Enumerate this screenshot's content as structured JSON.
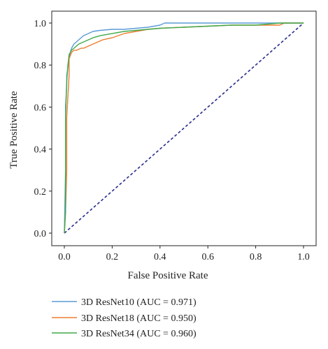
{
  "chart_data": {
    "type": "line",
    "title": "",
    "xlabel": "False Positive Rate",
    "ylabel": "True Positive Rate",
    "xlim": [
      0.0,
      1.0
    ],
    "ylim": [
      0.0,
      1.0
    ],
    "xticks": [
      "0.0",
      "0.2",
      "0.4",
      "0.6",
      "0.8",
      "1.0"
    ],
    "yticks": [
      "0.0",
      "0.2",
      "0.4",
      "0.6",
      "0.8",
      "1.0"
    ],
    "grid": false,
    "legend_position": "below",
    "series": [
      {
        "name": "3D ResNet10 (AUC = 0.971)",
        "color": "#5b9bd5",
        "x": [
          0.0,
          0.005,
          0.005,
          0.01,
          0.01,
          0.015,
          0.02,
          0.025,
          0.03,
          0.04,
          0.05,
          0.06,
          0.08,
          0.1,
          0.12,
          0.15,
          0.2,
          0.25,
          0.3,
          0.35,
          0.4,
          0.42,
          0.6,
          0.8,
          0.9,
          1.0
        ],
        "y": [
          0.0,
          0.3,
          0.6,
          0.7,
          0.75,
          0.79,
          0.83,
          0.86,
          0.88,
          0.9,
          0.91,
          0.92,
          0.94,
          0.95,
          0.96,
          0.965,
          0.97,
          0.97,
          0.975,
          0.98,
          0.99,
          1.0,
          1.0,
          1.0,
          1.0,
          1.0
        ]
      },
      {
        "name": "3D ResNet18 (AUC = 0.950)",
        "color": "#ed7d31",
        "x": [
          0.0,
          0.005,
          0.01,
          0.01,
          0.02,
          0.02,
          0.03,
          0.04,
          0.05,
          0.07,
          0.08,
          0.1,
          0.12,
          0.14,
          0.16,
          0.2,
          0.25,
          0.3,
          0.35,
          0.4,
          0.5,
          0.6,
          0.7,
          0.8,
          0.9,
          0.92,
          1.0
        ],
        "y": [
          0.0,
          0.1,
          0.3,
          0.55,
          0.75,
          0.83,
          0.86,
          0.87,
          0.87,
          0.88,
          0.88,
          0.89,
          0.9,
          0.91,
          0.92,
          0.93,
          0.95,
          0.96,
          0.97,
          0.975,
          0.98,
          0.985,
          0.99,
          0.99,
          0.99,
          1.0,
          1.0
        ]
      },
      {
        "name": "3D ResNet34 (AUC = 0.960)",
        "color": "#3fa94a",
        "x": [
          0.0,
          0.005,
          0.005,
          0.01,
          0.015,
          0.02,
          0.03,
          0.04,
          0.05,
          0.06,
          0.08,
          0.1,
          0.12,
          0.15,
          0.2,
          0.25,
          0.3,
          0.35,
          0.4,
          0.5,
          0.6,
          0.7,
          0.8,
          0.9,
          1.0
        ],
        "y": [
          0.0,
          0.1,
          0.55,
          0.72,
          0.8,
          0.85,
          0.87,
          0.88,
          0.89,
          0.9,
          0.91,
          0.92,
          0.93,
          0.94,
          0.95,
          0.96,
          0.965,
          0.97,
          0.975,
          0.98,
          0.985,
          0.99,
          0.99,
          1.0,
          1.0
        ]
      }
    ],
    "diagonal": {
      "color": "#2b2f8f",
      "x": [
        0.0,
        1.0
      ],
      "y": [
        0.0,
        1.0
      ]
    }
  }
}
